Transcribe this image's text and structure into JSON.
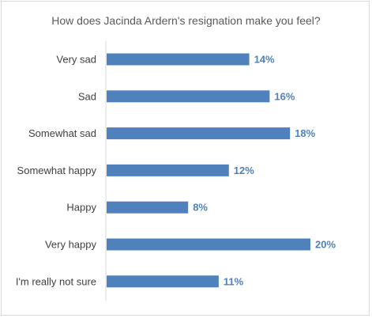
{
  "chart_data": {
    "type": "bar",
    "orientation": "horizontal",
    "title": "How does Jacinda Ardern's resignation make you feel?",
    "categories": [
      "Very sad",
      "Sad",
      "Somewhat sad",
      "Somewhat happy",
      "Happy",
      "Very happy",
      "I'm really not sure"
    ],
    "values": [
      14,
      16,
      18,
      12,
      8,
      20,
      11
    ],
    "value_labels": [
      "14%",
      "16%",
      "18%",
      "12%",
      "8%",
      "20%",
      "11%"
    ],
    "unit": "%",
    "xlim": [
      0,
      20
    ],
    "grid": false,
    "legend": "none",
    "bar_color": "#4f81bd",
    "label_color": "#4f81bd"
  }
}
